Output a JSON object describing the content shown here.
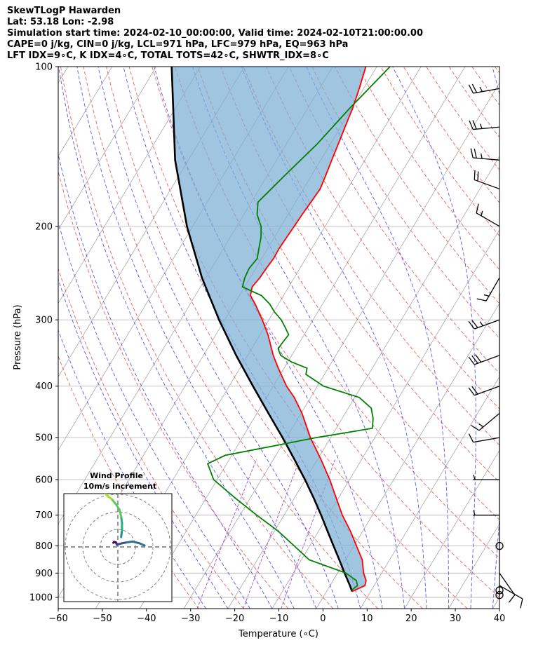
{
  "header": {
    "title": "SkewTLogP Hawarden",
    "location": "Lat: 53.18   Lon: -2.98",
    "times": "Simulation start time: 2024-02-10_00:00:00, Valid time: 2024-02-10T21:00:00.00",
    "indices1": "CAPE=0 j/kg, CIN=0 j/kg, LCL=971 hPa, LFC=979 hPa, EQ=963 hPa",
    "indices2": "LFT IDX=9∘C, K IDX=4∘C, TOTAL TOTS=42∘C, SHWTR_IDX=8∘C"
  },
  "chart_data": {
    "type": "line",
    "subtype": "skew-t log-p",
    "xlabel": "Temperature (∘C)",
    "ylabel": "Pressure (hPa)",
    "xlim": [
      -60,
      40
    ],
    "ylim": [
      1050,
      100
    ],
    "y_scale": "log",
    "x_ticks": [
      -60,
      -50,
      -40,
      -30,
      -20,
      -10,
      0,
      10,
      20,
      30,
      40
    ],
    "x_tick_labels": [
      "−60",
      "−50",
      "−40",
      "−30",
      "−20",
      "−10",
      "0",
      "10",
      "20",
      "30",
      "40"
    ],
    "y_ticks": [
      1000,
      900,
      800,
      700,
      600,
      500,
      400,
      300,
      200,
      100
    ],
    "y_tick_labels": [
      "1000",
      "900",
      "800",
      "700",
      "600",
      "500",
      "400",
      "300",
      "200",
      "100"
    ],
    "grid": true,
    "temperature": {
      "color": "#ff0000",
      "p": [
        975,
        950,
        930,
        900,
        850,
        800,
        750,
        700,
        650,
        600,
        550,
        500,
        450,
        420,
        400,
        370,
        350,
        320,
        300,
        280,
        270,
        260,
        250,
        240,
        230,
        220,
        210,
        200,
        190,
        180,
        170,
        160,
        150,
        140,
        130,
        120,
        110,
        100
      ],
      "t": [
        5.8,
        7.9,
        7.5,
        5.9,
        3.8,
        0.6,
        -2.8,
        -6.8,
        -10.5,
        -14.5,
        -19.2,
        -24.6,
        -29.8,
        -33.7,
        -37.0,
        -41.3,
        -44.2,
        -48.2,
        -51.5,
        -55.3,
        -57.5,
        -58.3,
        -57.8,
        -57.6,
        -57.3,
        -57.4,
        -57.2,
        -57.0,
        -56.8,
        -56.5,
        -56.2,
        -56.8,
        -57.5,
        -58.2,
        -59.0,
        -59.8,
        -61.0,
        -62.5
      ]
    },
    "dewpoint": {
      "color": "#008000",
      "p": [
        970,
        950,
        930,
        900,
        850,
        800,
        750,
        700,
        650,
        600,
        560,
        540,
        520,
        500,
        490,
        480,
        460,
        440,
        420,
        400,
        380,
        370,
        360,
        350,
        340,
        330,
        320,
        310,
        300,
        290,
        280,
        270,
        260,
        250,
        240,
        230,
        220,
        210,
        200,
        190,
        180,
        160,
        140,
        120,
        100
      ],
      "dp": [
        5.5,
        6.2,
        5.3,
        1.9,
        -8.2,
        -13.5,
        -19.2,
        -26.2,
        -33.4,
        -40.8,
        -44.3,
        -41.5,
        -32.5,
        -23.3,
        -17.5,
        -11.8,
        -13.0,
        -14.8,
        -19.0,
        -28.6,
        -34.2,
        -34.8,
        -39.2,
        -42.5,
        -44.0,
        -43.8,
        -43.5,
        -45.3,
        -47.2,
        -49.8,
        -52.0,
        -55.0,
        -60.5,
        -61.2,
        -61.5,
        -61.0,
        -62.0,
        -63.0,
        -64.5,
        -67.0,
        -68.5,
        -66.0,
        -63.0,
        -60.5,
        -57.0
      ]
    },
    "parcel": {
      "color": "#000000",
      "p": [
        975,
        950,
        900,
        850,
        800,
        750,
        700,
        650,
        600,
        550,
        500,
        450,
        400,
        350,
        300,
        250,
        200,
        150,
        100
      ],
      "t": [
        5.8,
        4.5,
        1.6,
        -1.4,
        -4.6,
        -8.0,
        -11.6,
        -15.6,
        -20.1,
        -25.2,
        -30.9,
        -37.4,
        -44.6,
        -52.6,
        -61.3,
        -70.9,
        -81.3,
        -93.0,
        -106.5
      ]
    },
    "wind_barbs": [
      {
        "p": 990,
        "speed_kt": 0,
        "dir_deg": 0
      },
      {
        "p": 970,
        "speed_kt": 0,
        "dir_deg": 0
      },
      {
        "p": 950,
        "speed_kt": 10,
        "dir_deg": 120
      },
      {
        "p": 900,
        "speed_kt": 10,
        "dir_deg": 145
      },
      {
        "p": 800,
        "speed_kt": 0,
        "dir_deg": 0
      },
      {
        "p": 700,
        "speed_kt": 5,
        "dir_deg": 270
      },
      {
        "p": 600,
        "speed_kt": 5,
        "dir_deg": 270
      },
      {
        "p": 500,
        "speed_kt": 10,
        "dir_deg": 260
      },
      {
        "p": 450,
        "speed_kt": 15,
        "dir_deg": 230
      },
      {
        "p": 400,
        "speed_kt": 20,
        "dir_deg": 250
      },
      {
        "p": 350,
        "speed_kt": 30,
        "dir_deg": 250
      },
      {
        "p": 300,
        "speed_kt": 25,
        "dir_deg": 250
      },
      {
        "p": 250,
        "speed_kt": 15,
        "dir_deg": 210
      },
      {
        "p": 200,
        "speed_kt": 15,
        "dir_deg": 300
      },
      {
        "p": 170,
        "speed_kt": 20,
        "dir_deg": 290
      },
      {
        "p": 150,
        "speed_kt": 25,
        "dir_deg": 275
      },
      {
        "p": 130,
        "speed_kt": 25,
        "dir_deg": 265
      },
      {
        "p": 110,
        "speed_kt": 25,
        "dir_deg": 260
      }
    ],
    "hodograph": {
      "title": "Wind Profile",
      "subtitle": "10m/s increment",
      "ring_radius_ms": [
        10,
        20,
        30
      ],
      "u": [
        -1.0,
        -0.5,
        0.5,
        0.8,
        1.0,
        1.5,
        4.0,
        7.0,
        10.0,
        14.0,
        17.0,
        3.5,
        4.0,
        4.0,
        3.5,
        2.5,
        0.5,
        -2.0,
        -4.5,
        -6.5,
        -5.0,
        -3.0
      ],
      "v": [
        0.8,
        1.3,
        1.0,
        0.3,
        -0.4,
        -0.2,
        0.5,
        1.0,
        1.5,
        0.5,
        -0.8,
        4.0,
        8.0,
        12.0,
        16.0,
        20.0,
        23.0,
        26.0,
        28.0,
        30.0,
        31.0,
        30.0
      ],
      "colormap": "viridis"
    }
  }
}
